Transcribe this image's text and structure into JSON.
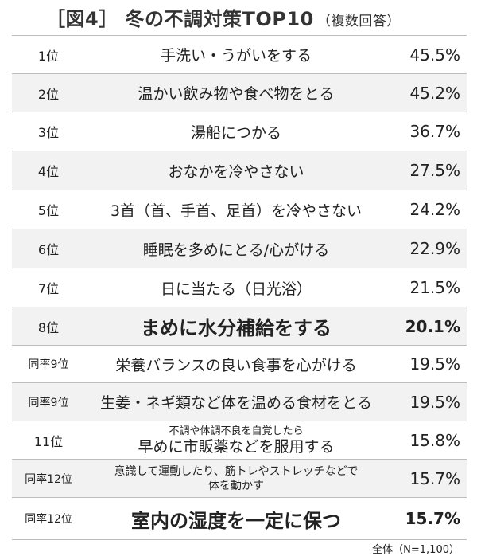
{
  "chart_data": {
    "type": "table",
    "title": "［図4］ 冬の不調対策TOP10",
    "subtitle": "（複数回答）",
    "note": "全体（N=1,100）",
    "rows": [
      {
        "rank": "1位",
        "item": "手洗い・うがいをする",
        "value": 45.5,
        "value_label": "45.5%"
      },
      {
        "rank": "2位",
        "item": "温かい飲み物や食べ物をとる",
        "value": 45.2,
        "value_label": "45.2%"
      },
      {
        "rank": "3位",
        "item": "湯船につかる",
        "value": 36.7,
        "value_label": "36.7%"
      },
      {
        "rank": "4位",
        "item": "おなかを冷やさない",
        "value": 27.5,
        "value_label": "27.5%"
      },
      {
        "rank": "5位",
        "item": "3首（首、手首、足首）を冷やさない",
        "value": 24.2,
        "value_label": "24.2%"
      },
      {
        "rank": "6位",
        "item": "睡眠を多めにとる/心がける",
        "value": 22.9,
        "value_label": "22.9%"
      },
      {
        "rank": "7位",
        "item": "日に当たる（日光浴）",
        "value": 21.5,
        "value_label": "21.5%"
      },
      {
        "rank": "8位",
        "item": "まめに水分補給をする",
        "value": 20.1,
        "value_label": "20.1%"
      },
      {
        "rank": "同率9位",
        "item": "栄養バランスの良い食事を心がける",
        "value": 19.5,
        "value_label": "19.5%"
      },
      {
        "rank": "同率9位",
        "item": "生姜・ネギ類など体を温める食材をとる",
        "value": 19.5,
        "value_label": "19.5%"
      },
      {
        "rank": "11位",
        "item_line1": "不調や体調不良を自覚したら",
        "item_line2": "早めに市販薬などを服用する",
        "value": 15.8,
        "value_label": "15.8%"
      },
      {
        "rank": "同率12位",
        "item_line1": "意識して運動したり、筋トレやストレッチなどで",
        "item_line2": "体を動かす",
        "value": 15.7,
        "value_label": "15.7%"
      },
      {
        "rank": "同率12位",
        "item": "室内の湿度を一定に保つ",
        "value": 15.7,
        "value_label": "15.7%"
      }
    ]
  }
}
